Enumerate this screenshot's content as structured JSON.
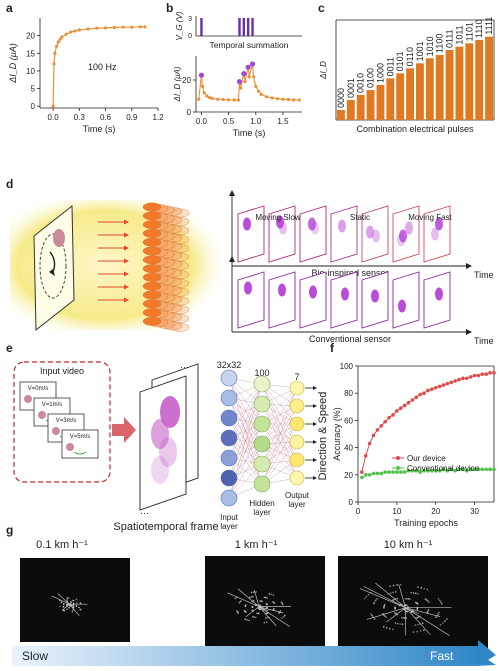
{
  "panels": {
    "a": {
      "letter": "a",
      "label": "100 Hz"
    },
    "b": {
      "letter": "b",
      "annotation": "Temporal summation"
    },
    "c": {
      "letter": "c"
    },
    "d": {
      "letter": "d",
      "moving_slow": "Moving Slow",
      "static": "Static",
      "moving_fast": "Moving Fast",
      "bio_caption": "Bio-inspired sensor",
      "conv_caption": "Conventional sensor",
      "time": "Time"
    },
    "e": {
      "letter": "e",
      "input_video": "Input video",
      "speeds": [
        "V=0m/s",
        "V=1m/s",
        "V=3m/s",
        "V=5m/s"
      ],
      "frame_label": "Spatiotemporal frame",
      "size_in": "32x32",
      "size_hidden": "100",
      "size_out": "7",
      "input_layer": "Input layer",
      "hidden_layer": "Hidden layer",
      "output_layer": "Output layer",
      "direction_speed": "Direction & Speed",
      "dots": "···"
    },
    "f": {
      "letter": "f"
    },
    "g": {
      "letter": "g",
      "speed_labels": [
        "0.1 km h⁻¹",
        "1 km h⁻¹",
        "10 km h⁻¹"
      ],
      "slow": "Slow",
      "fast": "Fast"
    }
  },
  "chart_data": [
    {
      "type": "line",
      "panel": "a",
      "xlabel": "Time (s)",
      "ylabel": "ΔI_D (μA)",
      "xlim": [
        -0.15,
        1.2
      ],
      "ylim": [
        -0.5,
        25
      ],
      "xticks": [
        "0.0",
        "0.3",
        "0.6",
        "0.9",
        "1.2"
      ],
      "xtick_values": [
        0,
        0.3,
        0.6,
        0.9,
        1.2
      ],
      "yticks": [
        "0",
        "5",
        "10",
        "15",
        "20"
      ],
      "ytick_values": [
        0,
        5,
        10,
        15,
        20
      ],
      "series": [
        {
          "values_x": [
            0,
            0.01,
            0.02,
            0.04,
            0.06,
            0.08,
            0.1,
            0.15,
            0.2,
            0.25,
            0.3,
            0.4,
            0.5,
            0.6,
            0.7,
            0.8,
            0.9,
            1.0,
            1.05
          ],
          "values_y": [
            0,
            12,
            15,
            17,
            18.2,
            19,
            19.6,
            20.4,
            21,
            21.3,
            21.6,
            21.9,
            22.1,
            22.2,
            22.3,
            22.4,
            22.4,
            22.5,
            22.5
          ]
        }
      ],
      "color": "#e8913a"
    },
    {
      "type": "line",
      "panel": "b",
      "xlabel": "Time (s)",
      "ylabel": "ΔI_D (μA)",
      "ylabel_top": "V_G (V)",
      "xlim": [
        -0.1,
        1.85
      ],
      "ylim": [
        0,
        35
      ],
      "xticks": [
        "0.0",
        "0.5",
        "1.0",
        "1.5"
      ],
      "xtick_values": [
        0,
        0.5,
        1.0,
        1.5
      ],
      "yticks": [
        "0",
        "20"
      ],
      "ytick_values": [
        0,
        20
      ],
      "yticks_top": [
        "0",
        "3"
      ],
      "pulses_x": [
        0.0,
        0.7,
        0.78,
        0.86,
        0.94
      ],
      "series": [
        {
          "name": "response",
          "values_x": [
            -0.05,
            0.0,
            0.02,
            0.05,
            0.1,
            0.15,
            0.2,
            0.3,
            0.4,
            0.5,
            0.6,
            0.68,
            0.7,
            0.72,
            0.78,
            0.8,
            0.86,
            0.88,
            0.94,
            0.96,
            1.0,
            1.05,
            1.1,
            1.2,
            1.3,
            1.4,
            1.5,
            1.6,
            1.7,
            1.8
          ],
          "values_y": [
            8,
            23,
            16,
            12,
            10,
            9,
            8.5,
            8,
            7.8,
            7.6,
            7.5,
            7.4,
            19,
            15,
            24,
            19,
            28,
            22,
            30,
            22,
            16,
            13,
            11,
            9.5,
            8.8,
            8.3,
            8,
            7.8,
            7.6,
            7.5
          ]
        }
      ],
      "peaks": [
        {
          "x": 0.0,
          "y": 23
        },
        {
          "x": 0.7,
          "y": 19
        },
        {
          "x": 0.78,
          "y": 24
        },
        {
          "x": 0.86,
          "y": 28
        },
        {
          "x": 0.94,
          "y": 30
        }
      ],
      "color": "#e8913a",
      "peak_color": "#a04bd6",
      "pulse_color": "#6a2ea8"
    },
    {
      "type": "bar",
      "panel": "c",
      "xlabel": "Combination electrical pulses",
      "ylabel": "ΔI_D",
      "categories": [
        "0000",
        "0001",
        "0010",
        "0100",
        "1000",
        "0011",
        "0101",
        "0110",
        "1001",
        "1010",
        "1100",
        "0111",
        "1011",
        "1101",
        "1110",
        "1111"
      ],
      "values": [
        6,
        12,
        15,
        18,
        21,
        25,
        28,
        31,
        34,
        37,
        39,
        42,
        44,
        46,
        48,
        50
      ],
      "ylim": [
        0,
        60
      ],
      "color": "#e07a22"
    },
    {
      "type": "line",
      "panel": "f",
      "xlabel": "Training epochs",
      "ylabel": "Accuracy (%)",
      "xlim": [
        0,
        35
      ],
      "ylim": [
        0,
        100
      ],
      "xticks": [
        "0",
        "10",
        "20",
        "30"
      ],
      "xtick_values": [
        0,
        10,
        20,
        30
      ],
      "yticks": [
        "0",
        "20",
        "40",
        "60",
        "80",
        "100"
      ],
      "ytick_values": [
        0,
        20,
        40,
        60,
        80,
        100
      ],
      "series": [
        {
          "name": "Our device",
          "color": "#e04b4b",
          "values_x": [
            1,
            2,
            3,
            4,
            5,
            6,
            7,
            8,
            9,
            10,
            11,
            12,
            13,
            14,
            15,
            16,
            17,
            18,
            19,
            20,
            21,
            22,
            23,
            24,
            25,
            26,
            27,
            28,
            29,
            30,
            31,
            32,
            33,
            34,
            35
          ],
          "values_y": [
            22,
            34,
            43,
            49,
            53,
            56,
            59,
            62,
            64,
            67,
            69,
            71,
            73,
            75,
            77,
            79,
            80,
            82,
            83,
            84,
            85,
            86,
            87,
            88,
            89,
            90,
            91,
            91,
            92,
            93,
            93,
            94,
            94,
            95,
            95
          ]
        },
        {
          "name": "Conventional device",
          "color": "#53c24a",
          "values_x": [
            1,
            2,
            3,
            4,
            5,
            6,
            7,
            8,
            9,
            10,
            11,
            12,
            13,
            14,
            15,
            16,
            17,
            18,
            19,
            20,
            21,
            22,
            23,
            24,
            25,
            26,
            27,
            28,
            29,
            30,
            31,
            32,
            33,
            34,
            35
          ],
          "values_y": [
            18,
            20,
            20,
            21,
            21,
            21,
            22,
            22,
            22,
            22,
            22,
            22,
            23,
            23,
            23,
            22,
            23,
            23,
            23,
            23,
            23,
            24,
            23,
            24,
            23,
            24,
            24,
            23,
            24,
            24,
            24,
            24,
            24,
            24,
            24
          ]
        }
      ]
    }
  ]
}
